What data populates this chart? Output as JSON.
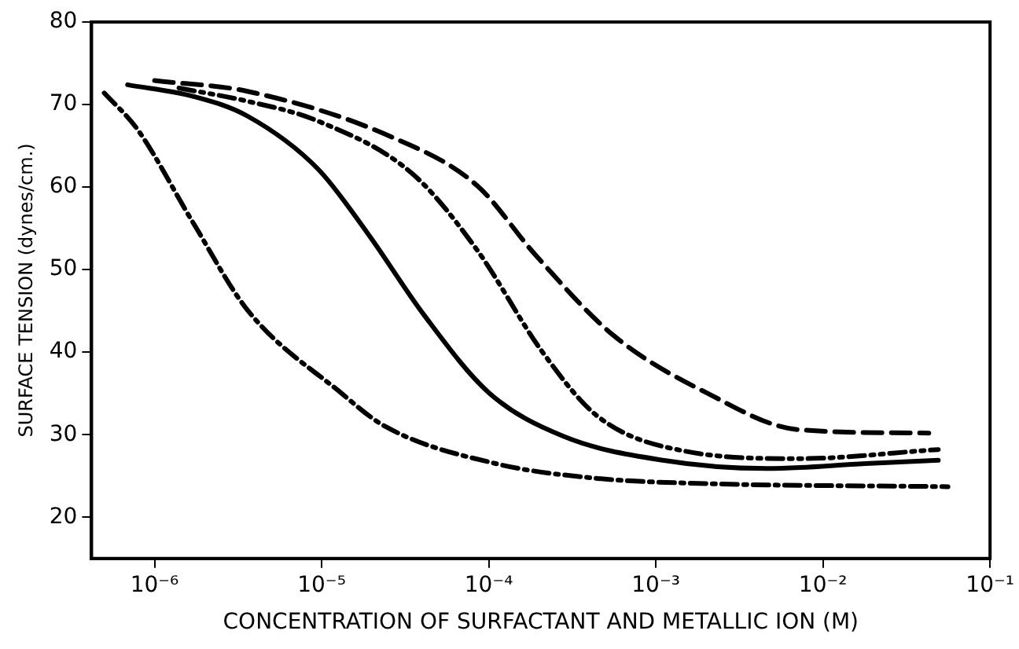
{
  "chart_data": {
    "type": "line",
    "xlabel": "CONCENTRATION OF SURFACTANT AND METALLIC ION (M)",
    "ylabel": "SURFACE TENSION (dynes/cm.)",
    "log": "x",
    "xlim": [
      4.2e-07,
      0.1
    ],
    "xticks": [
      {
        "value": 1e-06,
        "label": "10⁻⁶"
      },
      {
        "value": 1e-05,
        "label": "10⁻⁵"
      },
      {
        "value": 0.0001,
        "label": "10⁻⁴"
      },
      {
        "value": 0.001,
        "label": "10⁻³"
      },
      {
        "value": 0.01,
        "label": "10⁻²"
      },
      {
        "value": 0.1,
        "label": "10⁻¹"
      }
    ],
    "ylim": [
      15,
      80
    ],
    "yticks": [
      20,
      30,
      40,
      50,
      60,
      70,
      80
    ],
    "grid": false,
    "legend": false,
    "marker": "none",
    "series": [
      {
        "color": "#000000",
        "line_style": "dashdot",
        "x": [
          5e-07,
          7.9e-07,
          1.7e-06,
          3.6e-06,
          1.3e-05,
          2.4e-05,
          0.00011,
          0.00045,
          0.0018,
          0.056
        ],
        "values": [
          71.4,
          67,
          55.7,
          45.1,
          35.1,
          31,
          26.5,
          24.7,
          24.1,
          23.7
        ]
      },
      {
        "color": "#000000",
        "line_style": "solid",
        "x": [
          6.9e-07,
          1.7e-06,
          3.6e-06,
          9.5e-06,
          1.9e-05,
          4.1e-05,
          0.0001,
          0.00028,
          0.0011,
          0.0046,
          0.018,
          0.049
        ],
        "values": [
          72.4,
          71,
          68.6,
          62.2,
          54.3,
          44.5,
          35.1,
          29.8,
          26.9,
          25.9,
          26.5,
          26.9
        ]
      },
      {
        "color": "#000000",
        "line_style": "dashdotdot",
        "x": [
          1.4e-06,
          3.6e-06,
          9.5e-06,
          3.5e-05,
          8.5e-05,
          0.00021,
          0.00045,
          0.0015,
          0.0072,
          0.049
        ],
        "values": [
          72,
          70.4,
          68,
          61.6,
          52.4,
          40,
          32.2,
          28,
          27.1,
          28.2
        ]
      },
      {
        "color": "#000000",
        "line_style": "dashed",
        "x": [
          1e-06,
          3.6e-06,
          2.6e-05,
          8.5e-05,
          0.00019,
          0.00056,
          0.002,
          0.0072,
          0.043
        ],
        "values": [
          72.9,
          71.6,
          66.1,
          60.2,
          51.8,
          42,
          35.1,
          30.6,
          30.2
        ]
      }
    ]
  }
}
